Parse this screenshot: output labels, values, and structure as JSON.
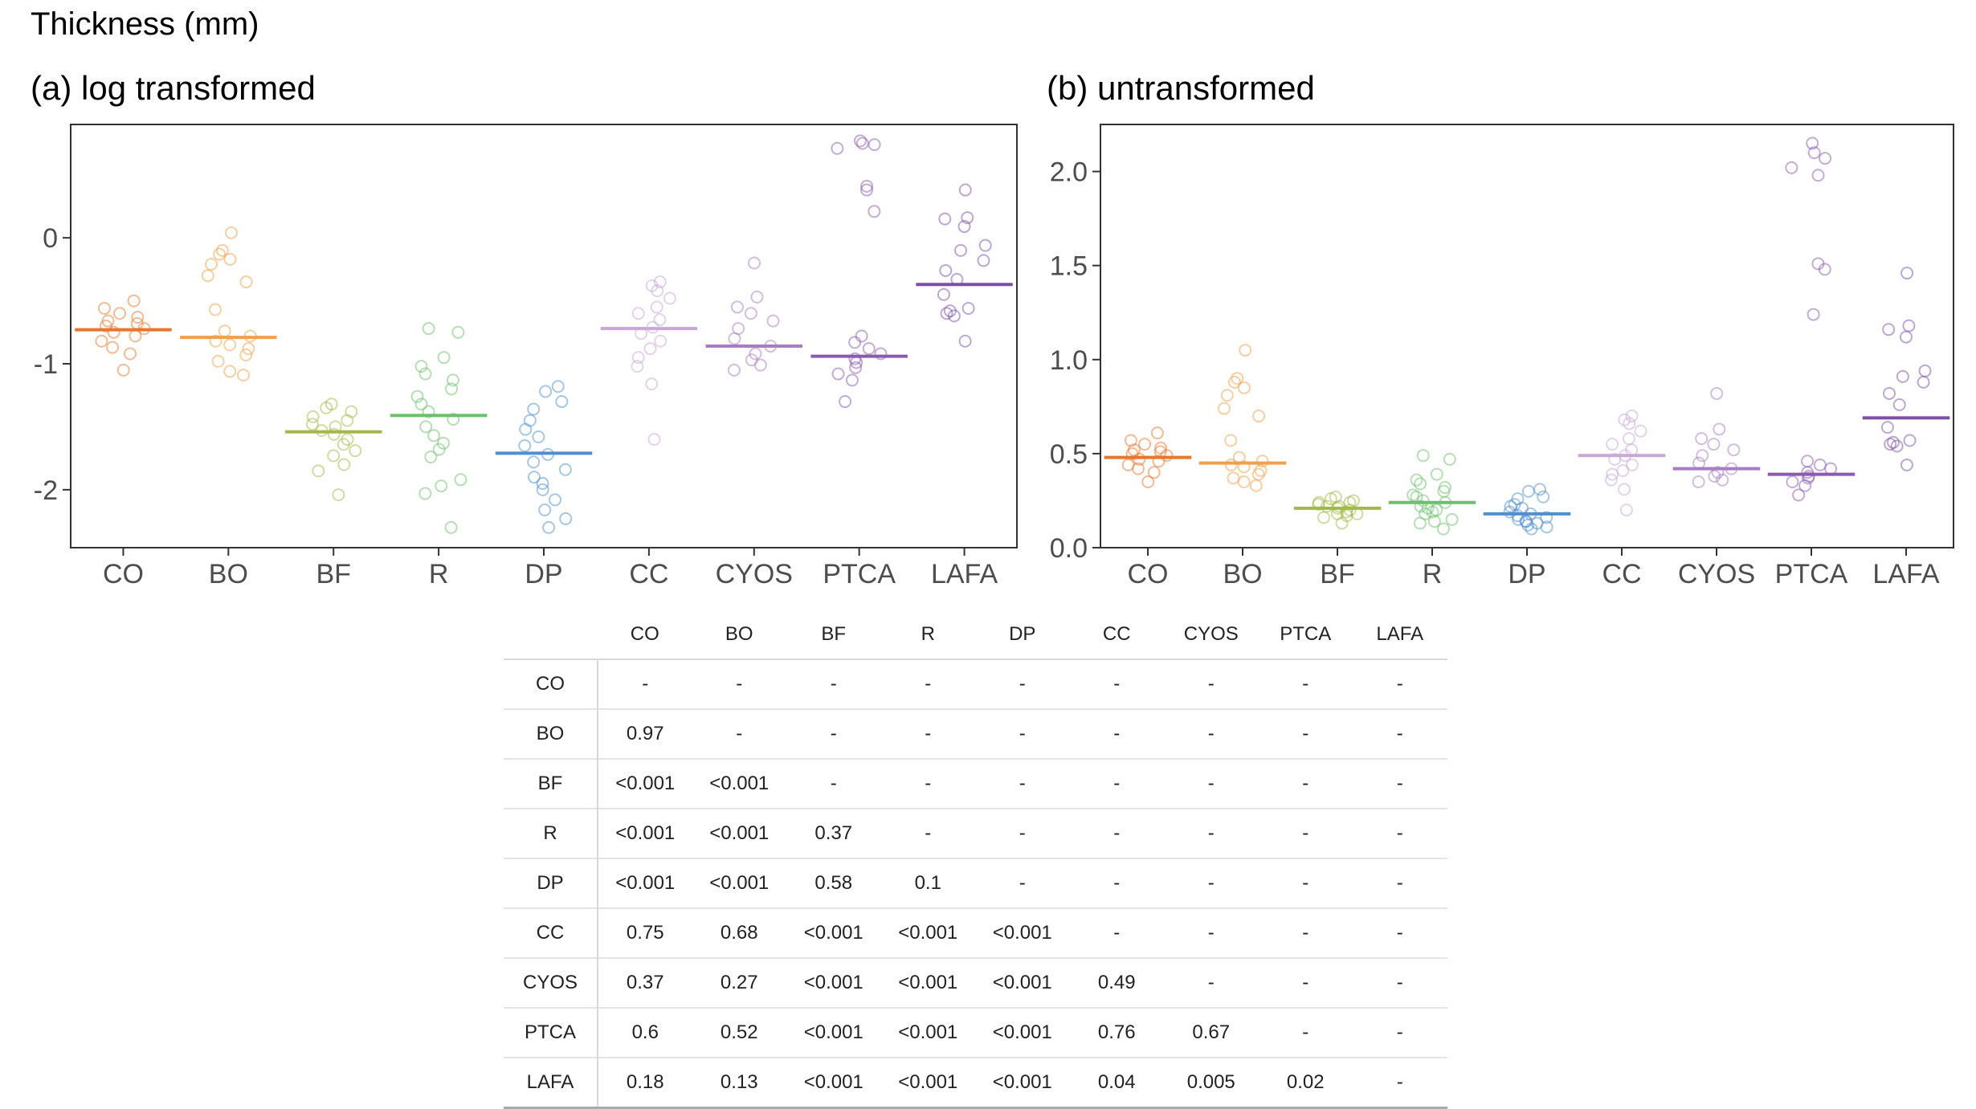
{
  "figure": {
    "title": "Thickness (mm)"
  },
  "colors": {
    "CO": "#e8772e",
    "BO": "#f0a04b",
    "BF": "#a3b84a",
    "R": "#6dbf6d",
    "DP": "#4f8fd0",
    "CC": "#c8a8d8",
    "CYOS": "#a87cc4",
    "PTCA": "#8a5ab0",
    "LAFA": "#7d4fa8"
  },
  "chart_data": [
    {
      "type": "scatter",
      "title": "(a) log transformed",
      "xlabel": "",
      "ylabel": "",
      "categories": [
        "CO",
        "BO",
        "BF",
        "R",
        "DP",
        "CC",
        "CYOS",
        "PTCA",
        "LAFA"
      ],
      "yticks": [
        0,
        -1,
        -2
      ],
      "ytick_labels": [
        "0",
        "-1",
        "-2"
      ],
      "ylim": [
        -2.46,
        0.9
      ],
      "grid": false,
      "series": [
        {
          "category": "CO",
          "mean": -0.73,
          "points": [
            -0.5,
            -0.56,
            -0.6,
            -0.63,
            -0.66,
            -0.68,
            -0.7,
            -0.72,
            -0.75,
            -0.78,
            -0.82,
            -0.87,
            -0.92,
            -1.05
          ]
        },
        {
          "category": "BO",
          "mean": -0.79,
          "points": [
            0.04,
            -0.1,
            -0.13,
            -0.17,
            -0.21,
            -0.3,
            -0.35,
            -0.57,
            -0.74,
            -0.78,
            -0.82,
            -0.85,
            -0.88,
            -0.93,
            -0.98,
            -1.06,
            -1.09
          ]
        },
        {
          "category": "BF",
          "mean": -1.54,
          "points": [
            -1.32,
            -1.35,
            -1.38,
            -1.42,
            -1.45,
            -1.48,
            -1.5,
            -1.53,
            -1.56,
            -1.6,
            -1.64,
            -1.69,
            -1.73,
            -1.8,
            -1.85,
            -2.04
          ]
        },
        {
          "category": "R",
          "mean": -1.41,
          "points": [
            -0.72,
            -0.75,
            -0.95,
            -1.02,
            -1.08,
            -1.13,
            -1.2,
            -1.26,
            -1.32,
            -1.38,
            -1.44,
            -1.5,
            -1.57,
            -1.63,
            -1.68,
            -1.74,
            -1.92,
            -1.97,
            -2.03,
            -2.3
          ]
        },
        {
          "category": "DP",
          "mean": -1.71,
          "points": [
            -1.18,
            -1.22,
            -1.3,
            -1.36,
            -1.45,
            -1.52,
            -1.58,
            -1.65,
            -1.72,
            -1.78,
            -1.84,
            -1.9,
            -1.95,
            -2.0,
            -2.08,
            -2.16,
            -2.23,
            -2.3
          ]
        },
        {
          "category": "CC",
          "mean": -0.72,
          "points": [
            -0.35,
            -0.38,
            -0.42,
            -0.48,
            -0.55,
            -0.6,
            -0.65,
            -0.71,
            -0.76,
            -0.82,
            -0.88,
            -0.95,
            -1.02,
            -1.16,
            -1.6
          ]
        },
        {
          "category": "CYOS",
          "mean": -0.86,
          "points": [
            -0.2,
            -0.47,
            -0.55,
            -0.6,
            -0.66,
            -0.72,
            -0.8,
            -0.86,
            -0.92,
            -0.97,
            -1.01,
            -1.05
          ]
        },
        {
          "category": "PTCA",
          "mean": -0.94,
          "points": [
            0.77,
            0.75,
            0.74,
            0.71,
            0.41,
            0.38,
            0.21,
            -0.78,
            -0.83,
            -0.88,
            -0.92,
            -0.96,
            -0.99,
            -1.03,
            -1.08,
            -1.13,
            -1.3
          ]
        },
        {
          "category": "LAFA",
          "mean": -0.37,
          "points": [
            0.38,
            0.16,
            0.15,
            0.09,
            -0.06,
            -0.1,
            -0.18,
            -0.26,
            -0.33,
            -0.45,
            -0.56,
            -0.58,
            -0.6,
            -0.62,
            -0.82
          ]
        }
      ]
    },
    {
      "type": "scatter",
      "title": "(b) untransformed",
      "xlabel": "",
      "ylabel": "",
      "categories": [
        "CO",
        "BO",
        "BF",
        "R",
        "DP",
        "CC",
        "CYOS",
        "PTCA",
        "LAFA"
      ],
      "yticks": [
        0.0,
        0.5,
        1.0,
        1.5,
        2.0
      ],
      "ytick_labels": [
        "0.0",
        "0.5",
        "1.0",
        "1.5",
        "2.0"
      ],
      "ylim": [
        0.0,
        2.25
      ],
      "grid": false,
      "series": [
        {
          "category": "CO",
          "mean": 0.48,
          "points": [
            0.61,
            0.57,
            0.55,
            0.53,
            0.52,
            0.51,
            0.5,
            0.49,
            0.47,
            0.46,
            0.44,
            0.42,
            0.4,
            0.35
          ]
        },
        {
          "category": "BO",
          "mean": 0.45,
          "points": [
            1.05,
            0.9,
            0.88,
            0.85,
            0.81,
            0.74,
            0.7,
            0.57,
            0.48,
            0.46,
            0.44,
            0.43,
            0.41,
            0.39,
            0.37,
            0.35,
            0.33
          ]
        },
        {
          "category": "BF",
          "mean": 0.21,
          "points": [
            0.27,
            0.26,
            0.25,
            0.24,
            0.24,
            0.23,
            0.22,
            0.22,
            0.21,
            0.2,
            0.19,
            0.18,
            0.18,
            0.17,
            0.16,
            0.13
          ]
        },
        {
          "category": "R",
          "mean": 0.24,
          "points": [
            0.49,
            0.47,
            0.39,
            0.36,
            0.34,
            0.32,
            0.3,
            0.28,
            0.27,
            0.25,
            0.24,
            0.22,
            0.21,
            0.2,
            0.19,
            0.18,
            0.15,
            0.14,
            0.13,
            0.1
          ]
        },
        {
          "category": "DP",
          "mean": 0.18,
          "points": [
            0.31,
            0.3,
            0.27,
            0.26,
            0.23,
            0.22,
            0.21,
            0.19,
            0.18,
            0.17,
            0.16,
            0.15,
            0.14,
            0.14,
            0.13,
            0.12,
            0.11,
            0.1
          ]
        },
        {
          "category": "CC",
          "mean": 0.49,
          "points": [
            0.7,
            0.68,
            0.66,
            0.62,
            0.58,
            0.55,
            0.52,
            0.49,
            0.47,
            0.44,
            0.41,
            0.39,
            0.36,
            0.31,
            0.2
          ]
        },
        {
          "category": "CYOS",
          "mean": 0.42,
          "points": [
            0.82,
            0.63,
            0.58,
            0.55,
            0.52,
            0.49,
            0.45,
            0.42,
            0.4,
            0.38,
            0.36,
            0.35
          ]
        },
        {
          "category": "PTCA",
          "mean": 0.39,
          "points": [
            2.15,
            2.1,
            2.07,
            2.02,
            1.98,
            1.51,
            1.48,
            1.24,
            0.46,
            0.44,
            0.42,
            0.4,
            0.38,
            0.37,
            0.35,
            0.33,
            0.28
          ]
        },
        {
          "category": "LAFA",
          "mean": 0.69,
          "points": [
            1.46,
            1.18,
            1.16,
            1.12,
            0.94,
            0.91,
            0.88,
            0.82,
            0.76,
            0.64,
            0.57,
            0.56,
            0.55,
            0.54,
            0.44
          ]
        }
      ]
    }
  ],
  "ptable": {
    "columns": [
      "CO",
      "BO",
      "BF",
      "R",
      "DP",
      "CC",
      "CYOS",
      "PTCA",
      "LAFA"
    ],
    "rows": [
      {
        "label": "CO",
        "cells": [
          "-",
          "-",
          "-",
          "-",
          "-",
          "-",
          "-",
          "-",
          "-"
        ]
      },
      {
        "label": "BO",
        "cells": [
          "0.97",
          "-",
          "-",
          "-",
          "-",
          "-",
          "-",
          "-",
          "-"
        ]
      },
      {
        "label": "BF",
        "cells": [
          "<0.001",
          "<0.001",
          "-",
          "-",
          "-",
          "-",
          "-",
          "-",
          "-"
        ]
      },
      {
        "label": "R",
        "cells": [
          "<0.001",
          "<0.001",
          "0.37",
          "-",
          "-",
          "-",
          "-",
          "-",
          "-"
        ]
      },
      {
        "label": "DP",
        "cells": [
          "<0.001",
          "<0.001",
          "0.58",
          "0.1",
          "-",
          "-",
          "-",
          "-",
          "-"
        ]
      },
      {
        "label": "CC",
        "cells": [
          "0.75",
          "0.68",
          "<0.001",
          "<0.001",
          "<0.001",
          "-",
          "-",
          "-",
          "-"
        ]
      },
      {
        "label": "CYOS",
        "cells": [
          "0.37",
          "0.27",
          "<0.001",
          "<0.001",
          "<0.001",
          "0.49",
          "-",
          "-",
          "-"
        ]
      },
      {
        "label": "PTCA",
        "cells": [
          "0.6",
          "0.52",
          "<0.001",
          "<0.001",
          "<0.001",
          "0.76",
          "0.67",
          "-",
          "-"
        ]
      },
      {
        "label": "LAFA",
        "cells": [
          "0.18",
          "0.13",
          "<0.001",
          "<0.001",
          "<0.001",
          "0.04",
          "0.005",
          "0.02",
          "-"
        ]
      }
    ]
  }
}
